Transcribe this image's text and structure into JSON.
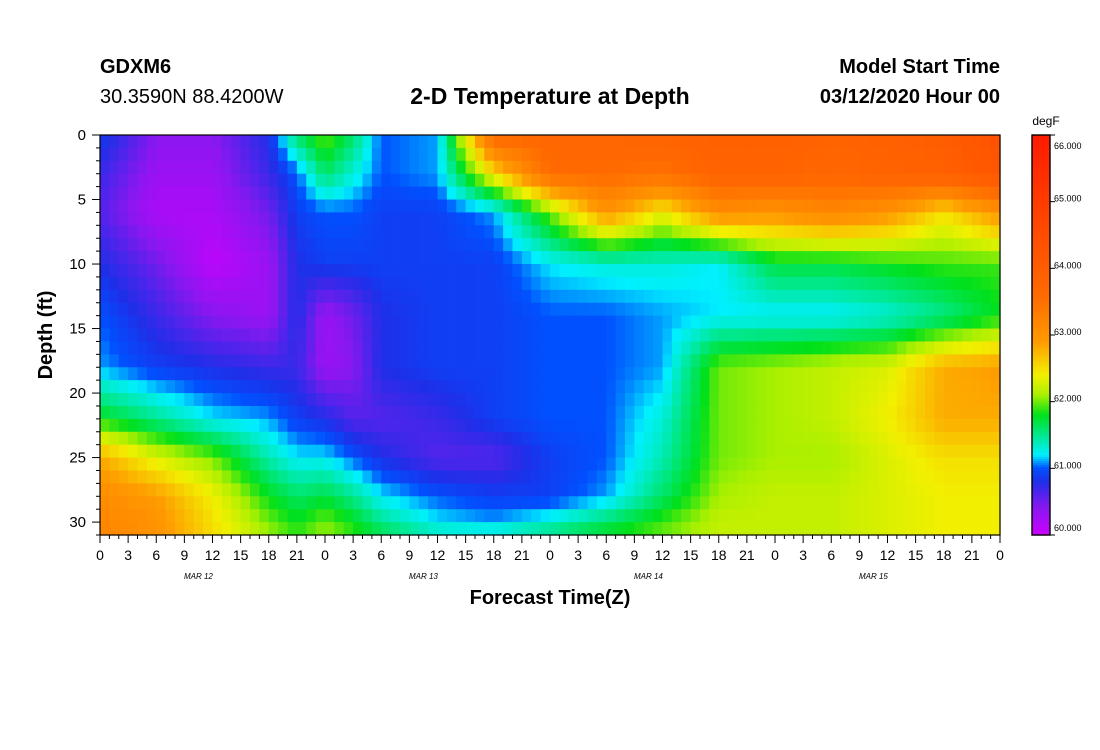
{
  "header": {
    "station": "GDXM6",
    "coords": "30.3590N 88.4200W",
    "title": "2-D Temperature at Depth",
    "start_label": "Model Start Time",
    "start_value": "03/12/2020 Hour 00"
  },
  "colors": {
    "ramp": [
      "#cc00ff",
      "#8a17f0",
      "#1f2fe8",
      "#0050ff",
      "#00f0ff",
      "#00e01a",
      "#aaf000",
      "#f2f000",
      "#ff9a00",
      "#ff6a00",
      "#ff1a00"
    ],
    "ramp_stops": [
      60.0,
      60.4,
      60.8,
      61.0,
      61.2,
      61.8,
      62.1,
      62.4,
      62.9,
      63.6,
      66.0
    ]
  },
  "chart_data": {
    "type": "heatmap",
    "title": "2-D Temperature at Depth",
    "xlabel": "Forecast Time(Z)",
    "ylabel": "Depth (ft)",
    "x_range_hours": [
      0,
      96
    ],
    "x_tick_labels": [
      "0",
      "3",
      "6",
      "9",
      "12",
      "15",
      "18",
      "21",
      "0",
      "3",
      "6",
      "9",
      "12",
      "15",
      "18",
      "21",
      "0",
      "3",
      "6",
      "9",
      "12",
      "15",
      "18",
      "21",
      "0",
      "3",
      "6",
      "9",
      "12",
      "15",
      "18",
      "21",
      "0"
    ],
    "date_labels": [
      "MAR 12",
      "MAR 13",
      "MAR 14",
      "MAR 15"
    ],
    "y_range": [
      0,
      31
    ],
    "y_ticks": [
      "0",
      "5",
      "10",
      "15",
      "20",
      "25",
      "30"
    ],
    "colorbar": {
      "unit": "degF",
      "range": [
        60.0,
        66.0
      ],
      "tick_labels": [
        "66.000",
        "65.000",
        "64.000",
        "63.000",
        "62.000",
        "61.000",
        "60.000"
      ]
    },
    "depths": [
      0,
      3,
      6,
      10,
      14,
      18,
      22,
      25,
      28,
      30,
      31
    ],
    "times": [
      0,
      6,
      12,
      18,
      21,
      24,
      27,
      30,
      36,
      42,
      48,
      54,
      60,
      66,
      72,
      78,
      84,
      90,
      96
    ],
    "temperature": [
      [
        60.9,
        60.4,
        60.4,
        60.8,
        61.6,
        62.0,
        61.6,
        61.0,
        61.1,
        63.7,
        63.7,
        63.7,
        63.8,
        63.9,
        63.9,
        63.8,
        63.9,
        64.0,
        64.4
      ],
      [
        60.7,
        60.3,
        60.3,
        60.7,
        61.0,
        61.6,
        61.3,
        61.0,
        61.1,
        62.5,
        63.6,
        63.6,
        63.5,
        63.8,
        63.8,
        63.7,
        63.8,
        63.9,
        64.2
      ],
      [
        60.6,
        60.2,
        60.2,
        60.5,
        60.9,
        61.0,
        61.0,
        60.9,
        60.9,
        61.1,
        62.0,
        63.0,
        62.4,
        63.1,
        63.0,
        63.2,
        63.0,
        62.5,
        63.0
      ],
      [
        60.8,
        60.5,
        60.1,
        60.3,
        60.8,
        60.9,
        60.9,
        60.9,
        60.9,
        60.9,
        61.2,
        61.3,
        61.3,
        61.2,
        61.7,
        61.7,
        61.8,
        61.9,
        61.9
      ],
      [
        61.0,
        60.7,
        60.4,
        60.3,
        60.8,
        60.3,
        60.5,
        60.8,
        60.9,
        60.9,
        61.0,
        61.0,
        61.1,
        61.2,
        61.2,
        61.2,
        61.3,
        61.5,
        61.8
      ],
      [
        61.1,
        60.9,
        60.8,
        60.7,
        60.7,
        60.3,
        60.4,
        60.8,
        60.9,
        60.9,
        61.0,
        61.0,
        61.1,
        62.0,
        62.1,
        62.2,
        62.3,
        62.8,
        62.9
      ],
      [
        61.8,
        61.5,
        61.2,
        61.1,
        60.9,
        60.8,
        60.6,
        60.6,
        60.7,
        60.9,
        61.0,
        61.0,
        61.3,
        62.0,
        62.1,
        62.2,
        62.4,
        62.8,
        62.8
      ],
      [
        62.8,
        62.3,
        62.0,
        61.4,
        61.2,
        61.2,
        61.0,
        60.8,
        60.6,
        60.6,
        60.9,
        61.0,
        61.4,
        62.0,
        62.1,
        62.1,
        62.3,
        62.5,
        62.5
      ],
      [
        63.1,
        62.9,
        62.4,
        61.8,
        61.6,
        61.7,
        61.5,
        61.2,
        61.0,
        60.9,
        60.9,
        61.1,
        61.6,
        62.1,
        62.2,
        62.2,
        62.3,
        62.4,
        62.4
      ],
      [
        63.2,
        63.0,
        62.5,
        62.0,
        61.8,
        62.0,
        61.8,
        61.5,
        61.2,
        61.1,
        61.3,
        61.6,
        61.9,
        62.2,
        62.2,
        62.2,
        62.3,
        62.4,
        62.4
      ],
      [
        63.2,
        63.0,
        62.5,
        62.1,
        61.9,
        62.1,
        61.9,
        61.7,
        61.4,
        61.4,
        61.6,
        61.8,
        62.0,
        62.2,
        62.2,
        62.2,
        62.3,
        62.4,
        62.4
      ]
    ]
  }
}
